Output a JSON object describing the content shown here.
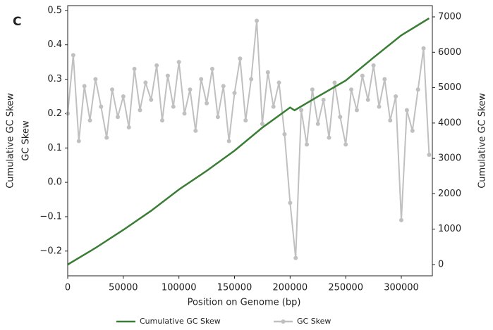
{
  "chart_data": {
    "type": "line",
    "panel_label": "C",
    "xlabel": "Position on Genome (bp)",
    "ylabels": [
      "Cumulative GC Skew",
      "GC Skew"
    ],
    "y2label": "Cumulative GC Skew",
    "xlim": [
      0,
      327900
    ],
    "ylim": [
      -0.272,
      0.514
    ],
    "y2lim": [
      -318,
      7318
    ],
    "xticks": [
      0,
      50000,
      100000,
      150000,
      200000,
      250000,
      300000
    ],
    "yticks": [
      {
        "value": -0.2,
        "label": "−0.2"
      },
      {
        "value": -0.1,
        "label": "−0.1"
      },
      {
        "value": 0,
        "label": "0.0"
      },
      0.1,
      0.2,
      0.3,
      0.4,
      0.5
    ],
    "y2ticks": [
      0,
      1000,
      2000,
      3000,
      4000,
      5000,
      6000,
      7000
    ],
    "legend": "bottom",
    "series": [
      {
        "name": "Cumulative GC Skew",
        "color": "#3a7d34",
        "axis": "y2",
        "markers": false,
        "x": [
          0,
          25000,
          50000,
          75000,
          100000,
          125000,
          150000,
          175000,
          200000,
          204000,
          225000,
          250000,
          275000,
          300000,
          325000
        ],
        "values": [
          0,
          470,
          980,
          1520,
          2120,
          2650,
          3220,
          3870,
          4440,
          4360,
          4750,
          5200,
          5850,
          6480,
          6960
        ]
      },
      {
        "name": "GC Skew",
        "color": "#c0c0c0",
        "axis": "y",
        "markers": true,
        "x": [
          0,
          5000,
          10000,
          15000,
          20000,
          25000,
          30000,
          35000,
          40000,
          45000,
          50000,
          55000,
          60000,
          65000,
          70000,
          75000,
          80000,
          85000,
          90000,
          95000,
          100000,
          105000,
          110000,
          115000,
          120000,
          125000,
          130000,
          135000,
          140000,
          145000,
          150000,
          155000,
          160000,
          165000,
          170000,
          175000,
          180000,
          185000,
          190000,
          195000,
          200000,
          205000,
          210000,
          215000,
          220000,
          225000,
          230000,
          235000,
          240000,
          245000,
          250000,
          255000,
          260000,
          265000,
          270000,
          275000,
          280000,
          285000,
          290000,
          295000,
          300000,
          305000,
          310000,
          315000,
          320000,
          325000
        ],
        "values": [
          0.2,
          0.37,
          0.12,
          0.28,
          0.18,
          0.3,
          0.22,
          0.13,
          0.27,
          0.19,
          0.25,
          0.16,
          0.33,
          0.21,
          0.29,
          0.24,
          0.34,
          0.18,
          0.31,
          0.22,
          0.35,
          0.2,
          0.27,
          0.15,
          0.3,
          0.23,
          0.33,
          0.19,
          0.28,
          0.12,
          0.26,
          0.36,
          0.18,
          0.3,
          0.47,
          0.17,
          0.32,
          0.22,
          0.29,
          0.14,
          -0.06,
          -0.22,
          0.21,
          0.11,
          0.27,
          0.17,
          0.24,
          0.13,
          0.29,
          0.19,
          0.11,
          0.27,
          0.21,
          0.31,
          0.24,
          0.34,
          0.22,
          0.3,
          0.18,
          0.25,
          -0.11,
          0.21,
          0.15,
          0.27,
          0.39,
          0.08
        ]
      }
    ]
  }
}
